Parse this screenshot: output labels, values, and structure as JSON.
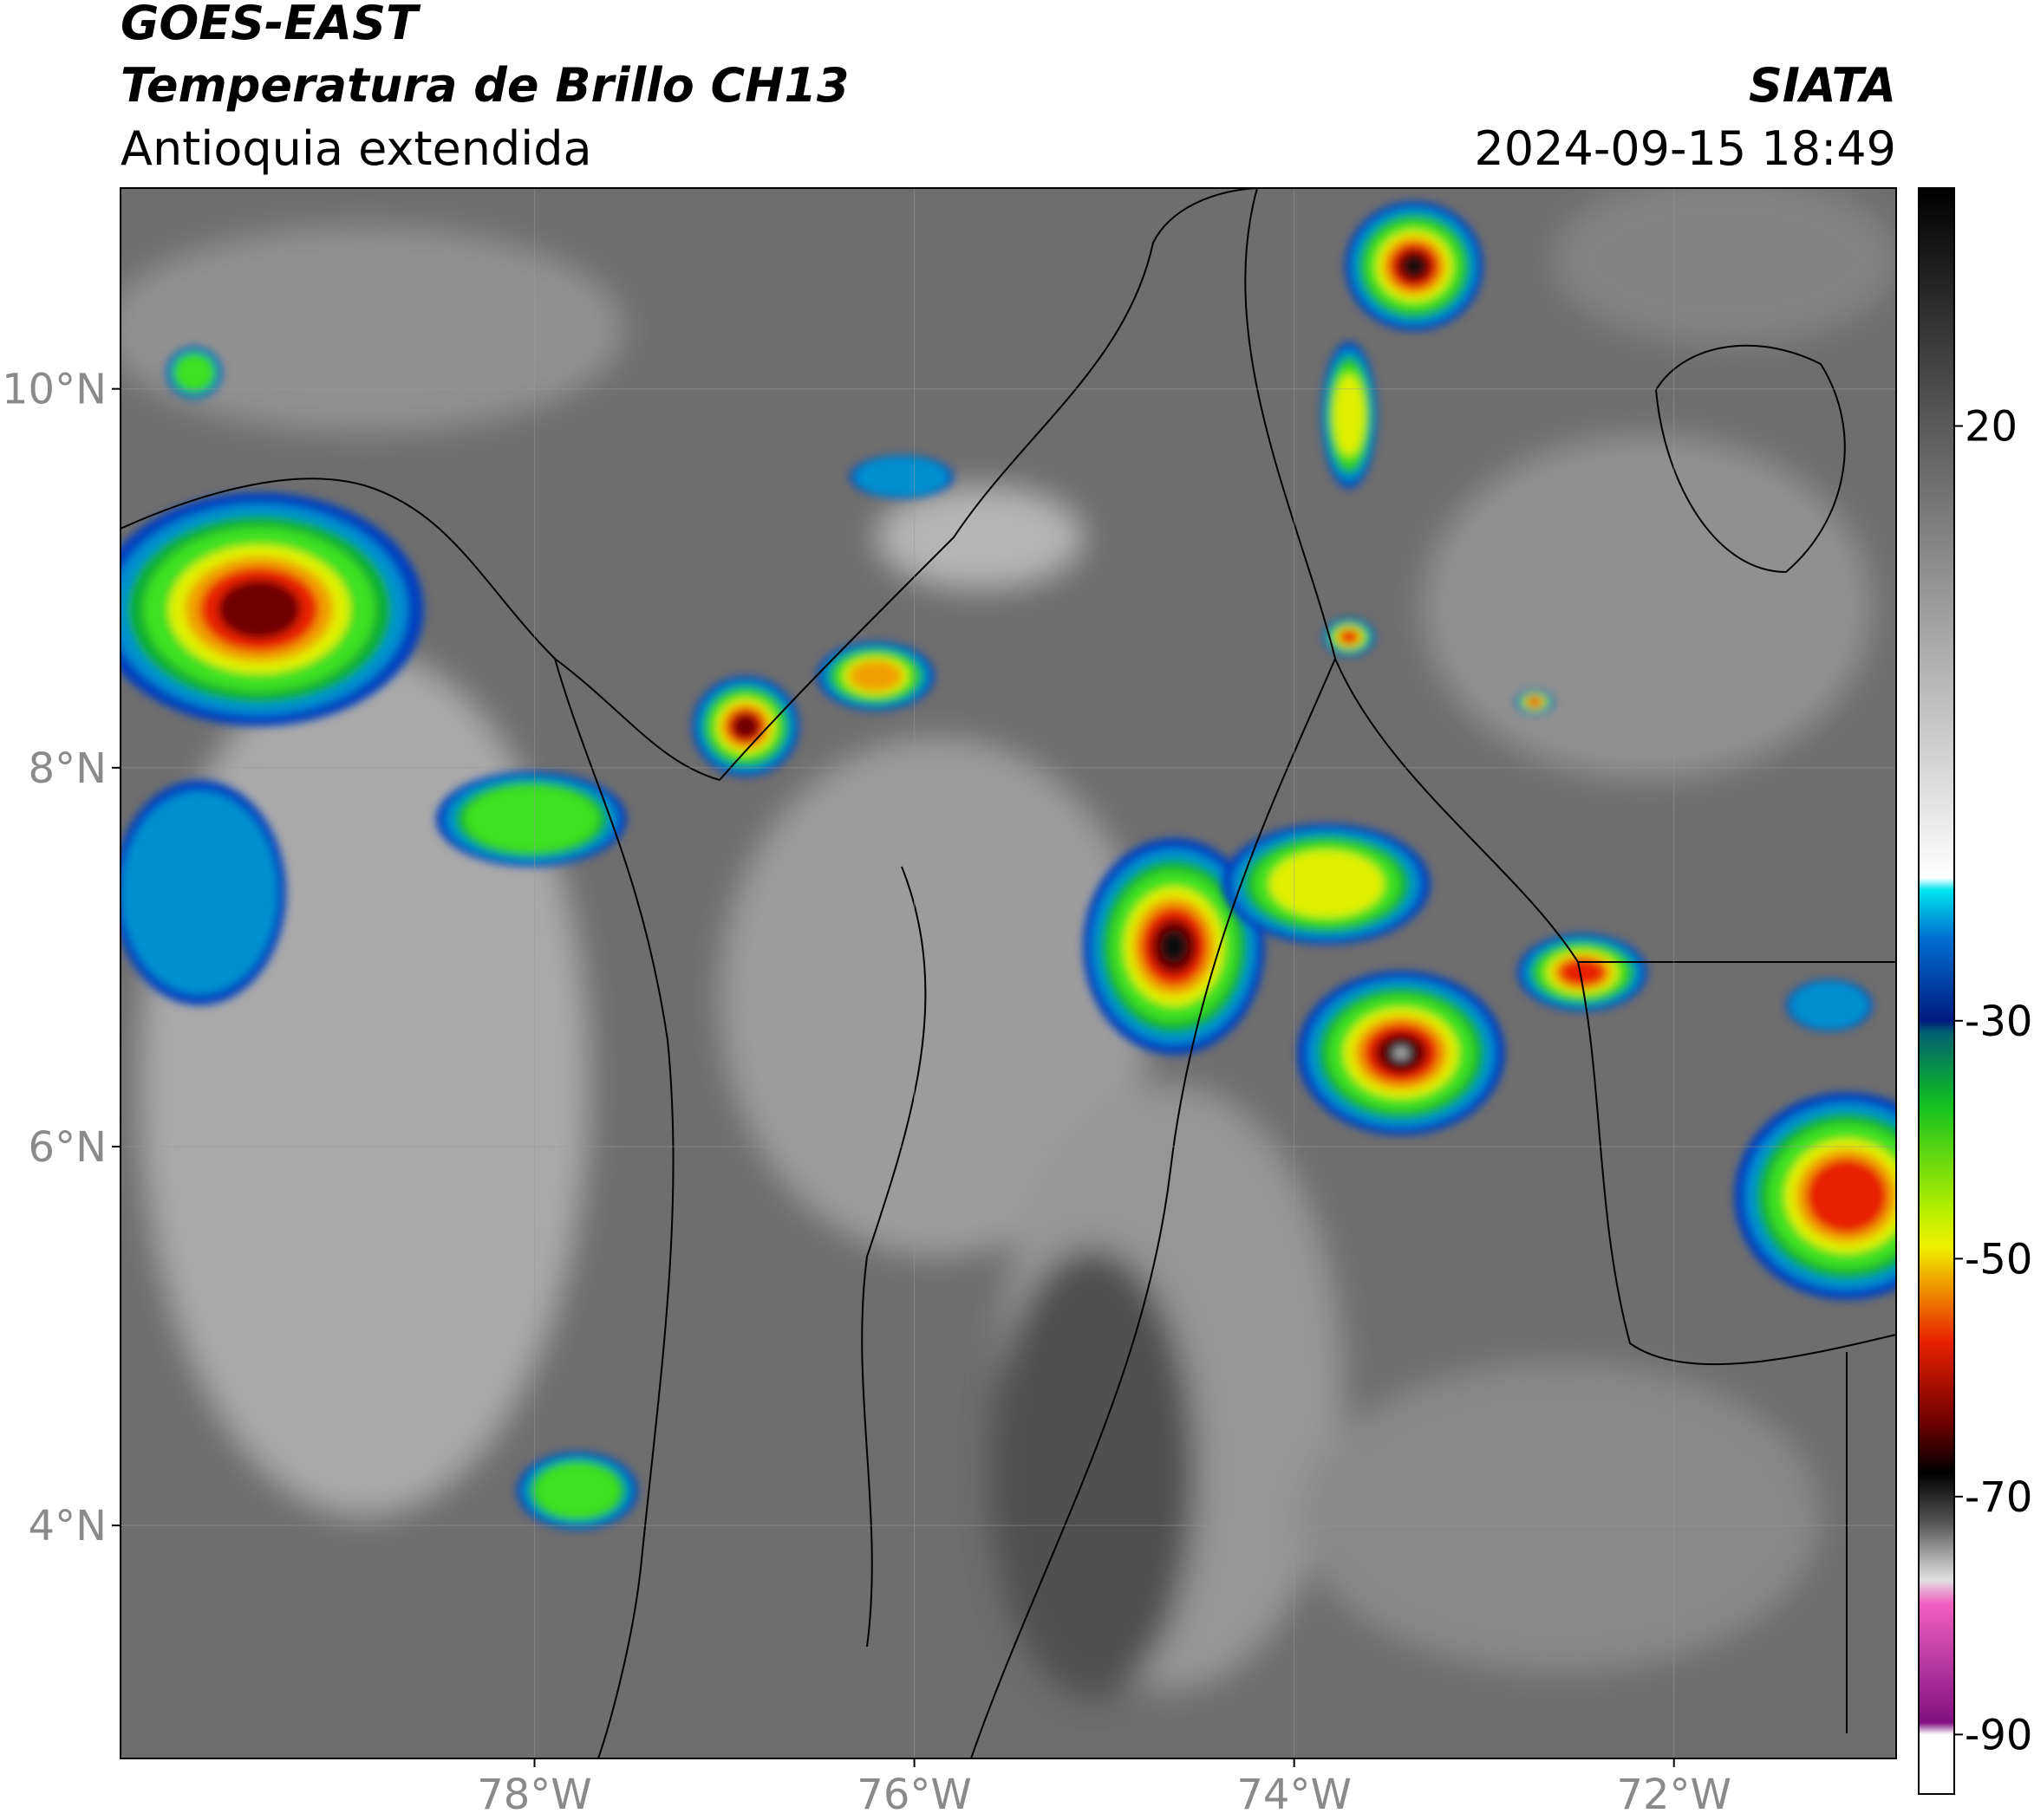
{
  "header": {
    "title": "GOES-EAST",
    "subtitle": "Temperatura de Brillo CH13",
    "region": "Antioquia extendida",
    "source": "SIATA",
    "datetime": "2024-09-15 18:49"
  },
  "map": {
    "xlim": [
      -80.18,
      -70.83
    ],
    "ylim": [
      2.77,
      11.06
    ],
    "xticks": [
      {
        "value": -78,
        "label": "78°W"
      },
      {
        "value": -76,
        "label": "76°W"
      },
      {
        "value": -74,
        "label": "74°W"
      },
      {
        "value": -72,
        "label": "72°W"
      }
    ],
    "yticks": [
      {
        "value": 10,
        "label": "10°N"
      },
      {
        "value": 8,
        "label": "8°N"
      },
      {
        "value": 6,
        "label": "6°N"
      },
      {
        "value": 4,
        "label": "4°N"
      }
    ],
    "grid": true
  },
  "colorbar": {
    "lim": [
      -95,
      40
    ],
    "ticks": [
      20,
      -30,
      -50,
      -70,
      -90
    ],
    "colormap": [
      {
        "value": 40,
        "color": "#000000"
      },
      {
        "value": 20,
        "color": "#5a5a5a"
      },
      {
        "value": -18,
        "color": "#ffffff"
      },
      {
        "value": -19,
        "color": "#00e5f0"
      },
      {
        "value": -23,
        "color": "#0070d0"
      },
      {
        "value": -30,
        "color": "#001a80"
      },
      {
        "value": -31,
        "color": "#006070"
      },
      {
        "value": -37,
        "color": "#10c020"
      },
      {
        "value": -46,
        "color": "#b8f000"
      },
      {
        "value": -49,
        "color": "#f0f000"
      },
      {
        "value": -52,
        "color": "#f0a000"
      },
      {
        "value": -57,
        "color": "#e82000"
      },
      {
        "value": -64,
        "color": "#6a0000"
      },
      {
        "value": -68,
        "color": "#000000"
      },
      {
        "value": -72,
        "color": "#505050"
      },
      {
        "value": -77,
        "color": "#e0e0e0"
      },
      {
        "value": -79,
        "color": "#f060c0"
      },
      {
        "value": -89,
        "color": "#801080"
      },
      {
        "value": -90,
        "color": "#ffffff"
      },
      {
        "value": -95,
        "color": "#ffffff"
      }
    ]
  }
}
